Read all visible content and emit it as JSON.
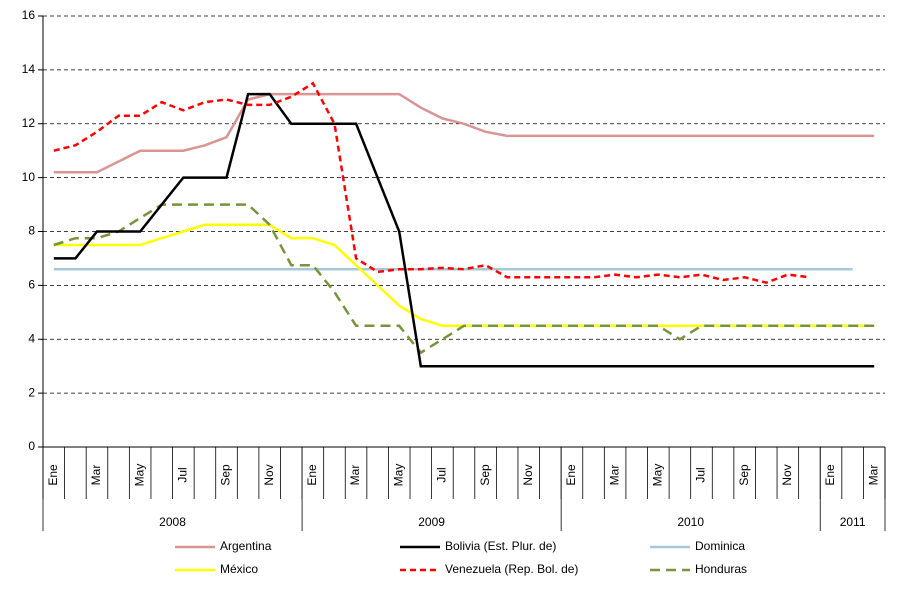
{
  "chart_data": {
    "type": "line",
    "categories": [
      "Ene",
      null,
      "Mar",
      null,
      "May",
      null,
      "Jul",
      null,
      "Sep",
      null,
      "Nov",
      null,
      "Ene",
      null,
      "Mar",
      null,
      "May",
      null,
      "Jul",
      null,
      "Sep",
      null,
      "Nov",
      null,
      "Ene",
      null,
      "Mar",
      null,
      "May",
      null,
      "Jul",
      null,
      "Sep",
      null,
      "Nov",
      null,
      "Ene",
      null,
      "Mar"
    ],
    "x_groups": [
      {
        "label": "2008",
        "span": 12
      },
      {
        "label": "2009",
        "span": 12
      },
      {
        "label": "2010",
        "span": 12
      },
      {
        "label": "2011",
        "span": 3
      }
    ],
    "ylim": [
      0,
      16
    ],
    "yticks": [
      0,
      2,
      4,
      6,
      8,
      10,
      12,
      14,
      16
    ],
    "grid": true,
    "series": [
      {
        "name": "Argentina",
        "color": "#d99594",
        "dash": false,
        "values": [
          10.2,
          10.2,
          10.2,
          10.6,
          11,
          11,
          11,
          11.2,
          11.5,
          12.9,
          13.1,
          13.1,
          13.1,
          13.1,
          13.1,
          13.1,
          13.1,
          12.6,
          12.2,
          12.0,
          11.7,
          11.55,
          11.55,
          11.55,
          11.55,
          11.55,
          11.55,
          11.55,
          11.55,
          11.55,
          11.55,
          11.55,
          11.55,
          11.55,
          11.55,
          11.55,
          11.55,
          11.55,
          11.55
        ]
      },
      {
        "name": "Bolivia (Est. Plur. de)",
        "color": "#000000",
        "dash": false,
        "values": [
          7,
          7,
          8,
          8,
          8,
          9,
          10,
          10,
          10,
          13.1,
          13.1,
          12,
          12,
          12,
          12,
          10,
          8,
          3,
          3,
          3,
          3,
          3,
          3,
          3,
          3,
          3,
          3,
          3,
          3,
          3,
          3,
          3,
          3,
          3,
          3,
          3,
          3,
          3,
          3
        ]
      },
      {
        "name": "Dominica",
        "color": "#a5c8d8",
        "dash": false,
        "values": [
          6.6,
          6.6,
          6.6,
          6.6,
          6.6,
          6.6,
          6.6,
          6.6,
          6.6,
          6.6,
          6.6,
          6.6,
          6.6,
          6.6,
          6.6,
          6.6,
          6.6,
          6.6,
          6.6,
          6.6,
          6.6,
          6.6,
          6.6,
          6.6,
          6.6,
          6.6,
          6.6,
          6.6,
          6.6,
          6.6,
          6.6,
          6.6,
          6.6,
          6.6,
          6.6,
          6.6,
          6.6,
          6.6,
          null
        ]
      },
      {
        "name": "México",
        "color": "#ffff00",
        "dash": false,
        "values": [
          7.5,
          7.5,
          7.5,
          7.5,
          7.5,
          7.75,
          8,
          8.25,
          8.25,
          8.25,
          8.25,
          7.75,
          7.75,
          7.5,
          6.75,
          6,
          5.25,
          4.75,
          4.5,
          4.5,
          4.5,
          4.5,
          4.5,
          4.5,
          4.5,
          4.5,
          4.5,
          4.5,
          4.5,
          4.5,
          4.5,
          4.5,
          4.5,
          4.5,
          4.5,
          4.5,
          4.5,
          4.5,
          4.5
        ]
      },
      {
        "name": "Venezuela (Rep. Bol. de)",
        "color": "#ff0000",
        "dash": true,
        "values": [
          11,
          11.2,
          11.7,
          12.3,
          12.3,
          12.8,
          12.5,
          12.8,
          12.9,
          12.7,
          12.7,
          13.0,
          13.5,
          12.0,
          7.0,
          6.5,
          6.6,
          6.6,
          6.65,
          6.6,
          6.75,
          6.3,
          6.3,
          6.3,
          6.3,
          6.3,
          6.4,
          6.3,
          6.4,
          6.3,
          6.4,
          6.2,
          6.3,
          6.1,
          6.4,
          6.3,
          null,
          null,
          null
        ]
      },
      {
        "name": "Honduras",
        "color": "#77933c",
        "dash": true,
        "values": [
          7.5,
          7.75,
          7.75,
          8,
          8.5,
          9,
          9,
          9,
          9,
          9,
          8.25,
          6.75,
          6.75,
          5.75,
          4.5,
          4.5,
          4.5,
          3.5,
          4,
          4.5,
          4.5,
          4.5,
          4.5,
          4.5,
          4.5,
          4.5,
          4.5,
          4.5,
          4.5,
          4,
          4.5,
          4.5,
          4.5,
          4.5,
          4.5,
          4.5,
          4.5,
          4.5,
          4.5
        ]
      }
    ]
  }
}
